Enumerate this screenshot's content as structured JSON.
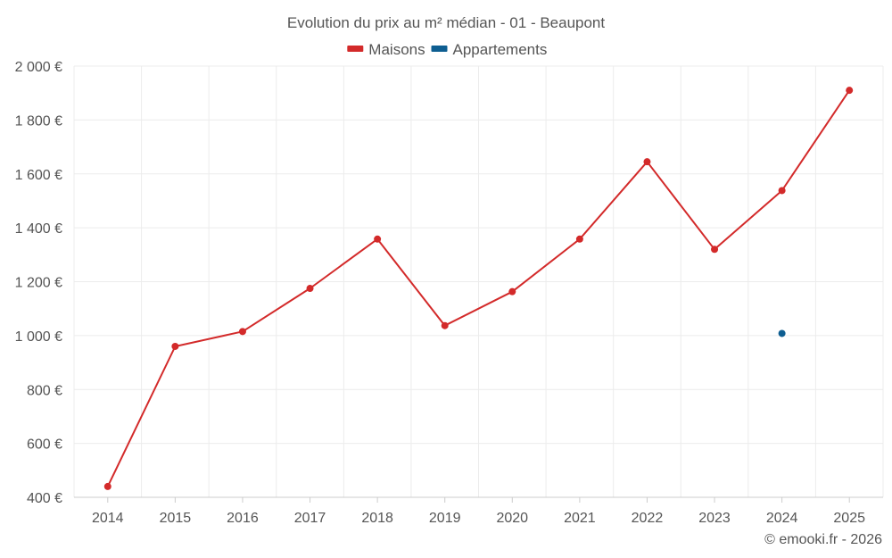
{
  "chart_data": {
    "type": "line",
    "title": "Evolution du prix au m² médian - 01 - Beaupont",
    "categories": [
      "2014",
      "2015",
      "2016",
      "2017",
      "2018",
      "2019",
      "2020",
      "2021",
      "2022",
      "2023",
      "2024",
      "2025"
    ],
    "series": [
      {
        "name": "Maisons",
        "color": "#d32a2a",
        "values": [
          440,
          960,
          1015,
          1175,
          1358,
          1037,
          1163,
          1358,
          1645,
          1320,
          1538,
          1910
        ]
      },
      {
        "name": "Appartements",
        "color": "#0e5e91",
        "values": [
          null,
          null,
          null,
          null,
          null,
          null,
          null,
          null,
          null,
          null,
          1008,
          null
        ]
      }
    ],
    "ylim": [
      400,
      2000
    ],
    "yticks": [
      400,
      600,
      800,
      1000,
      1200,
      1400,
      1600,
      1800,
      2000
    ],
    "ytick_labels": [
      "400 €",
      "600 €",
      "800 €",
      "1 000 €",
      "1 200 €",
      "1 400 €",
      "1 600 €",
      "1 800 €",
      "2 000 €"
    ],
    "xlabel": "",
    "ylabel": "",
    "grid": true,
    "legend": "top-center"
  },
  "footer": "© emooki.fr - 2026"
}
